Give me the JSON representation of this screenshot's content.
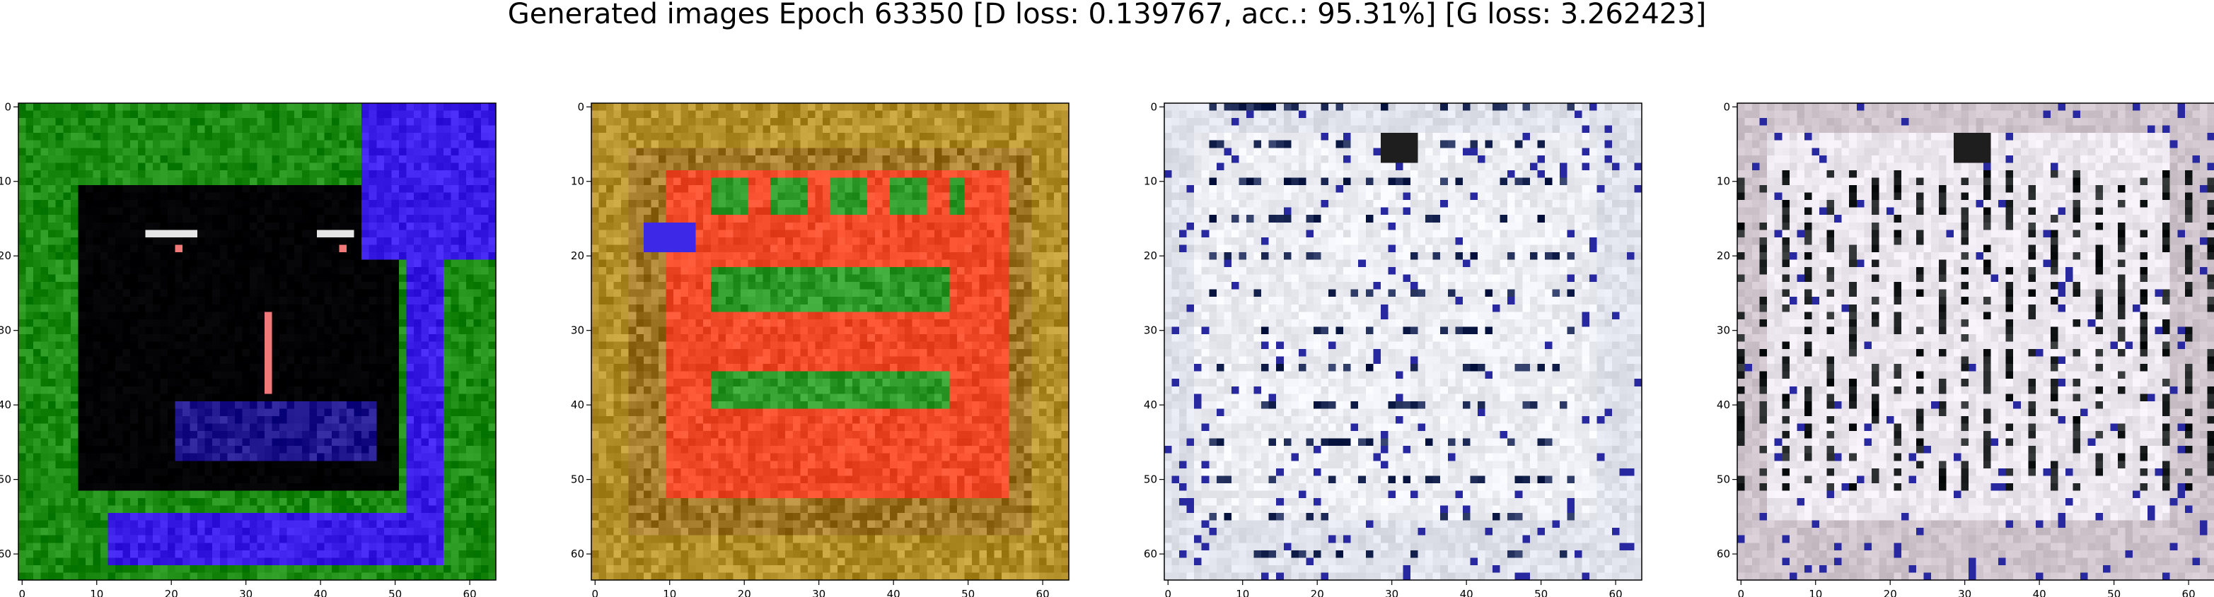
{
  "figure": {
    "title": "Generated images Epoch 63350 [D loss: 0.139767, acc.: 95.31%] [G loss: 3.262423]"
  },
  "chart_data": [
    {
      "type": "heatmap",
      "content": "generated image",
      "x_ticks": [
        "0",
        "10",
        "20",
        "30",
        "40",
        "50",
        "60"
      ],
      "y_ticks": [
        "0",
        "10",
        "20",
        "30",
        "40",
        "50",
        "60"
      ],
      "xlim": [
        -0.5,
        63.5
      ],
      "ylim": [
        63.5,
        -0.5
      ],
      "palette": {
        "background": "#1a8a12",
        "inner": "#020205",
        "band": "#3a1ee8"
      }
    },
    {
      "type": "heatmap",
      "content": "generated image",
      "x_ticks": [
        "0",
        "10",
        "20",
        "30",
        "40",
        "50",
        "60"
      ],
      "y_ticks": [
        "0",
        "10",
        "20",
        "30",
        "40",
        "50",
        "60"
      ],
      "xlim": [
        -0.5,
        63.5
      ],
      "ylim": [
        63.5,
        -0.5
      ],
      "palette": {
        "background": "#b4902a",
        "inner": "#f04a28",
        "accent": "#2e9a2a"
      }
    },
    {
      "type": "heatmap",
      "content": "generated image",
      "x_ticks": [
        "0",
        "10",
        "20",
        "30",
        "40",
        "50",
        "60"
      ],
      "y_ticks": [
        "0",
        "10",
        "20",
        "30",
        "40",
        "50",
        "60"
      ],
      "xlim": [
        -0.5,
        63.5
      ],
      "ylim": [
        63.5,
        -0.5
      ],
      "palette": {
        "background": "#dfe2ea",
        "inner": "#eceef3",
        "accent": "#1c2a55"
      }
    },
    {
      "type": "heatmap",
      "content": "generated image",
      "x_ticks": [
        "0",
        "10",
        "20",
        "30",
        "40",
        "50",
        "60"
      ],
      "y_ticks": [
        "0",
        "10",
        "20",
        "30",
        "40",
        "50",
        "60"
      ],
      "xlim": [
        -0.5,
        63.5
      ],
      "ylim": [
        63.5,
        -0.5
      ],
      "palette": {
        "background": "#cfc4cc",
        "inner": "#ece6ee",
        "accent": "#1e2222"
      }
    }
  ]
}
